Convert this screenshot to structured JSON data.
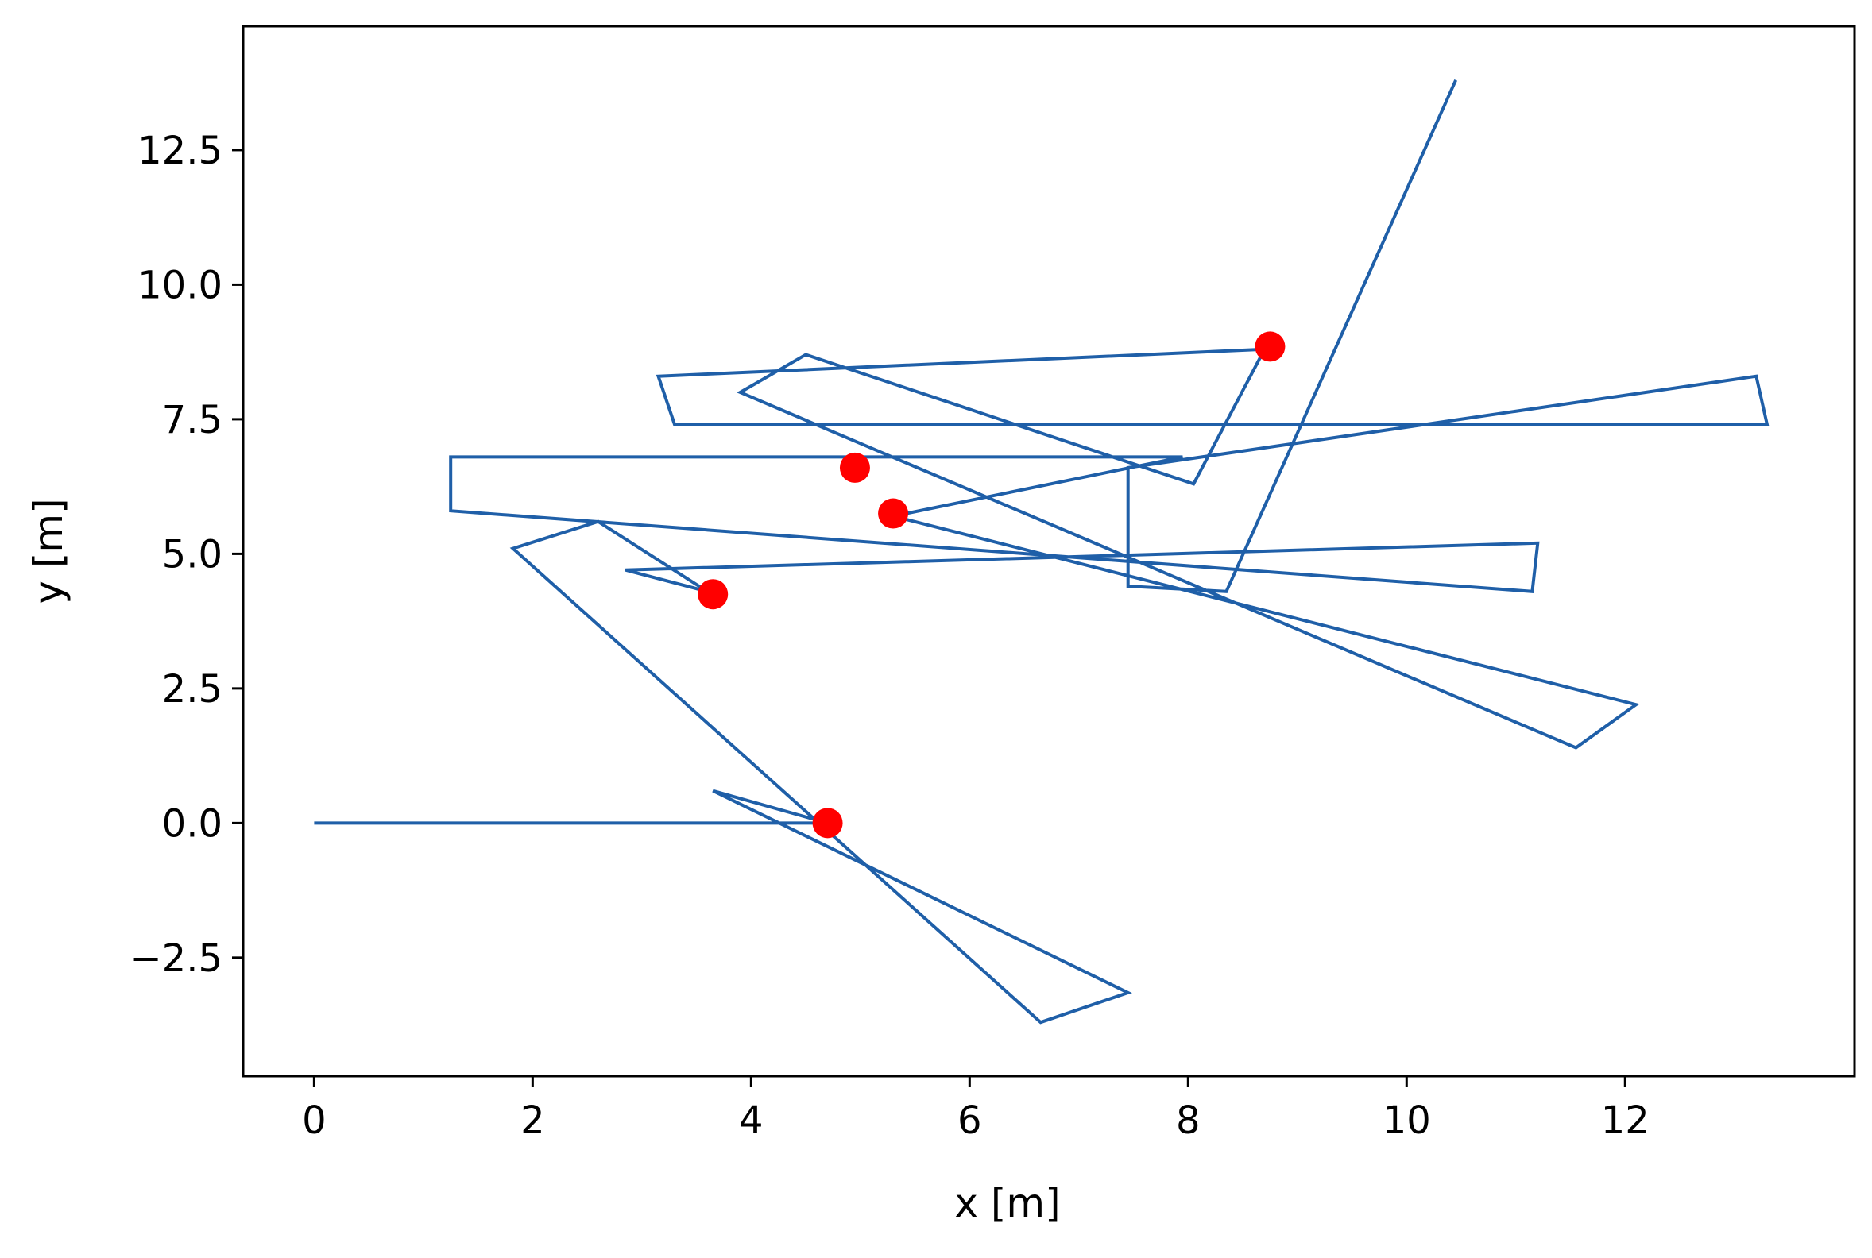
{
  "chart_data": {
    "type": "line",
    "title": "",
    "xlabel": "x [m]",
    "ylabel": "y [m]",
    "xlim": [
      -0.65,
      14.1
    ],
    "ylim": [
      -4.7,
      14.8
    ],
    "x_ticks": [
      0,
      2,
      4,
      6,
      8,
      10,
      12
    ],
    "x_tick_labels": [
      "0",
      "2",
      "4",
      "6",
      "8",
      "10",
      "12"
    ],
    "y_ticks": [
      -2.5,
      0.0,
      2.5,
      5.0,
      7.5,
      10.0,
      12.5
    ],
    "y_tick_labels": [
      "−2.5",
      "0.0",
      "2.5",
      "5.0",
      "7.5",
      "10.0",
      "12.5"
    ],
    "grid": false,
    "legend": "none",
    "series": [
      {
        "type": "line",
        "color": "#1f5fa8",
        "x": [
          0.0,
          4.7,
          3.65,
          7.45,
          6.65,
          1.82,
          2.6,
          3.6,
          2.85,
          11.2,
          11.15,
          1.25,
          1.25,
          7.95,
          5.3,
          12.1,
          11.55,
          3.9,
          4.5,
          8.05,
          8.7,
          3.15,
          3.3,
          13.3,
          13.2,
          7.45,
          7.45,
          8.35,
          10.45
        ],
        "y": [
          0.0,
          0.0,
          0.6,
          -3.15,
          -3.7,
          5.1,
          5.6,
          4.3,
          4.7,
          5.2,
          4.3,
          5.8,
          6.8,
          6.8,
          5.7,
          2.2,
          1.4,
          8.0,
          8.7,
          6.3,
          8.8,
          8.3,
          7.4,
          7.4,
          8.3,
          6.6,
          4.4,
          4.3,
          13.8
        ]
      },
      {
        "type": "scatter",
        "color": "#ff0000",
        "x": [
          4.7,
          3.65,
          5.3,
          4.95,
          8.75
        ],
        "y": [
          0.0,
          4.25,
          5.75,
          6.6,
          8.85
        ]
      }
    ]
  }
}
